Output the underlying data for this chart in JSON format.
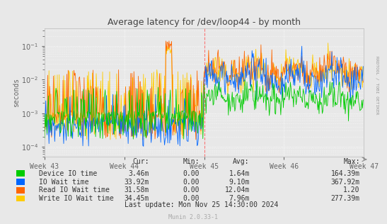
{
  "title": "Average latency for /dev/loop44 - by month",
  "ylabel": "seconds",
  "background_color": "#e8e8e8",
  "plot_background": "#e8e8e8",
  "grid_color": "#ffffff",
  "colors": {
    "device_io": "#00cc00",
    "io_wait": "#0066ff",
    "read_io_wait": "#ff6600",
    "write_io_wait": "#ffcc00"
  },
  "legend": [
    {
      "label": "Device IO time",
      "color": "#00cc00",
      "cur": "3.46m",
      "min": "0.00",
      "avg": "1.64m",
      "max": "164.39m"
    },
    {
      "label": "IO Wait time",
      "color": "#0066ff",
      "cur": "33.92m",
      "min": "0.00",
      "avg": "9.10m",
      "max": "367.92m"
    },
    {
      "label": "Read IO Wait time",
      "color": "#ff6600",
      "cur": "31.58m",
      "min": "0.00",
      "avg": "12.04m",
      "max": "1.20"
    },
    {
      "label": "Write IO Wait time",
      "color": "#ffcc00",
      "cur": "34.45m",
      "min": "0.00",
      "avg": "7.96m",
      "max": "277.39m"
    }
  ],
  "last_update": "Last update: Mon Nov 25 14:30:00 2024",
  "munin_version": "Munin 2.0.33-1",
  "rrdtool_text": "RRDTOOL / TOBI OETIKER",
  "xtick_labels": [
    "Week 43",
    "Week 44",
    "Week 45",
    "Week 46",
    "Week 47"
  ],
  "n_points": 500,
  "split": 250
}
